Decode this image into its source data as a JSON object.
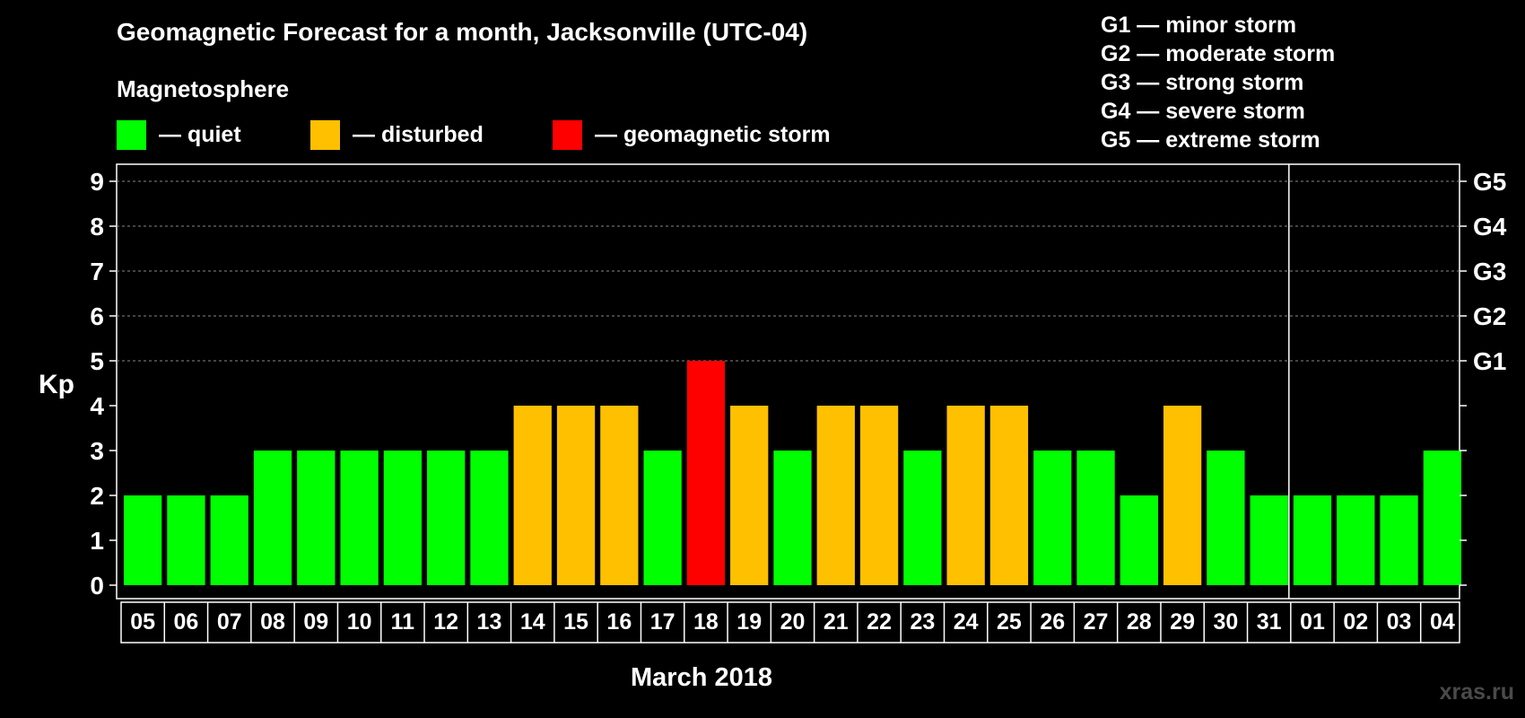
{
  "header": {
    "title": "Geomagnetic Forecast for a month, Jacksonville (UTC-04)",
    "subtitle": "Magnetosphere"
  },
  "legend": {
    "quiet": {
      "label": "— quiet",
      "color": "#00ff00"
    },
    "disturbed": {
      "label": "— disturbed",
      "color": "#ffc000"
    },
    "storm": {
      "label": "— geomagnetic storm",
      "color": "#ff0000"
    }
  },
  "g_legend": [
    "G1 — minor storm",
    "G2 — moderate storm",
    "G3 — strong storm",
    "G4 — severe storm",
    "G5 — extreme storm"
  ],
  "watermark": "xras.ru",
  "chart_data": {
    "type": "bar",
    "title": "Geomagnetic Forecast for a month, Jacksonville (UTC-04)",
    "ylabel": "Kp",
    "xlabel": "March 2018",
    "ylim": [
      0,
      9
    ],
    "yticks": [
      "0",
      "1",
      "2",
      "3",
      "4",
      "5",
      "6",
      "7",
      "8",
      "9"
    ],
    "right_axis_labels": [
      {
        "kp": 5,
        "label": "G1"
      },
      {
        "kp": 6,
        "label": "G2"
      },
      {
        "kp": 7,
        "label": "G3"
      },
      {
        "kp": 8,
        "label": "G4"
      },
      {
        "kp": 9,
        "label": "G5"
      }
    ],
    "month_divider_after_index": 26,
    "categories": [
      "05",
      "06",
      "07",
      "08",
      "09",
      "10",
      "11",
      "12",
      "13",
      "14",
      "15",
      "16",
      "17",
      "18",
      "19",
      "20",
      "21",
      "22",
      "23",
      "24",
      "25",
      "26",
      "27",
      "28",
      "29",
      "30",
      "31",
      "01",
      "02",
      "03",
      "04"
    ],
    "values": [
      2,
      2,
      2,
      3,
      3,
      3,
      3,
      3,
      3,
      4,
      4,
      4,
      3,
      5,
      4,
      3,
      4,
      4,
      3,
      4,
      4,
      3,
      3,
      2,
      4,
      3,
      2,
      2,
      2,
      2,
      3
    ],
    "status": [
      "quiet",
      "quiet",
      "quiet",
      "quiet",
      "quiet",
      "quiet",
      "quiet",
      "quiet",
      "quiet",
      "disturbed",
      "disturbed",
      "disturbed",
      "quiet",
      "storm",
      "disturbed",
      "quiet",
      "disturbed",
      "disturbed",
      "quiet",
      "disturbed",
      "disturbed",
      "quiet",
      "quiet",
      "quiet",
      "disturbed",
      "quiet",
      "quiet",
      "quiet",
      "quiet",
      "quiet",
      "quiet"
    ]
  }
}
